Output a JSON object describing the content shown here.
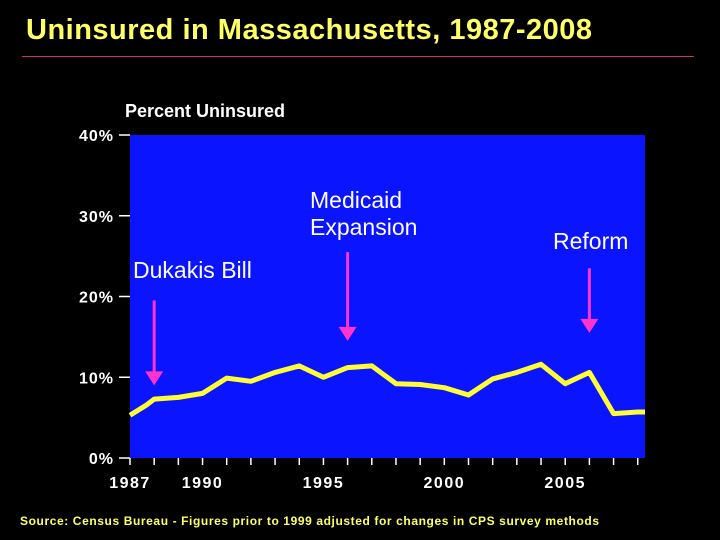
{
  "title": "Uninsured in Massachusetts, 1987-2008",
  "footer": "Source: Census Bureau - Figures prior to 1999 adjusted for changes in CPS survey methods",
  "colors": {
    "background": "#000000",
    "plot_area": "#0A14FF",
    "line": "#FFFF33",
    "arrow": "#FF33CC",
    "title": "#FFFF66",
    "annotation_text": "#FFFFFF",
    "axis": "#FFFFFF",
    "title_rule": "#CC3377"
  },
  "chart_data": {
    "type": "line",
    "title": "Uninsured in Massachusetts, 1987-2008",
    "xlabel": "",
    "ylabel": "Percent Uninsured",
    "xlim": [
      1987,
      2008.3
    ],
    "ylim": [
      0,
      40
    ],
    "y_ticks": [
      0,
      10,
      20,
      30,
      40
    ],
    "y_tick_labels": [
      "0%",
      "10%",
      "20%",
      "30%",
      "40%"
    ],
    "x_ticks": [
      1987,
      1990,
      1995,
      2000,
      2005
    ],
    "x_tick_labels": [
      "1987",
      "1990",
      "1995",
      "2000",
      "2005"
    ],
    "x_minor_ticks": [
      1987,
      1988,
      1989,
      1990,
      1991,
      1992,
      1993,
      1994,
      1995,
      1996,
      1997,
      1998,
      1999,
      2000,
      2001,
      2002,
      2003,
      2004,
      2005,
      2006,
      2007,
      2008
    ],
    "grid": false,
    "legend": "none",
    "series": [
      {
        "x": [
          1987,
          1987.7,
          1988,
          1989,
          1990,
          1991,
          1992,
          1993,
          1994,
          1995,
          1996,
          1997,
          1998,
          1999,
          2000,
          2001,
          2002,
          2003,
          2004,
          2005,
          2006,
          2007,
          2008,
          2008.3
        ],
        "values": [
          5.3,
          6.6,
          7.3,
          7.5,
          8.0,
          9.9,
          9.5,
          10.6,
          11.4,
          10.0,
          11.2,
          11.4,
          9.2,
          9.1,
          8.7,
          7.8,
          9.8,
          10.6,
          11.6,
          9.2,
          10.6,
          5.5,
          5.7,
          5.7
        ]
      }
    ],
    "annotations": [
      {
        "text": "Dukakis Bill",
        "lines": [
          "Dukakis Bill"
        ],
        "x": 1988,
        "arrow_from": 19.5,
        "arrow_to": 9.0
      },
      {
        "text": "Medicaid Expansion",
        "lines": [
          "Medicaid",
          "Expansion"
        ],
        "x": 1996,
        "arrow_from": 25.5,
        "arrow_to": 14.5
      },
      {
        "text": "Reform",
        "lines": [
          "Reform"
        ],
        "x": 2006,
        "arrow_from": 23.5,
        "arrow_to": 15.5
      }
    ]
  }
}
